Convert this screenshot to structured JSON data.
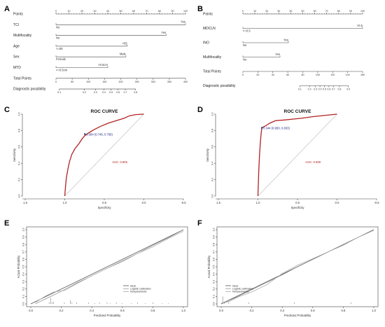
{
  "panel_labels": [
    "A",
    "B",
    "C",
    "D",
    "E",
    "F"
  ],
  "chart_data": [
    {
      "panel": "A",
      "type": "nomogram",
      "points_label": "Points",
      "points_ticks": [
        "0",
        "10",
        "20",
        "30",
        "40",
        "50",
        "60",
        "70",
        "80",
        "90",
        "100"
      ],
      "variables": [
        {
          "name": "TCI",
          "labels": [
            {
              "text": "No",
              "at": 0
            },
            {
              "text": "Yes",
              "at": 100
            }
          ]
        },
        {
          "name": "Multifocality",
          "labels": [
            {
              "text": "No",
              "at": 0
            },
            {
              "text": "Yes",
              "at": 85
            }
          ]
        },
        {
          "name": "Age",
          "labels": [
            {
              "text": ">=55",
              "at": 0
            },
            {
              "text": "<55",
              "at": 55
            }
          ]
        },
        {
          "name": "Sex",
          "labels": [
            {
              "text": "Female",
              "at": 0
            },
            {
              "text": "Male",
              "at": 54
            }
          ]
        },
        {
          "name": "MTD",
          "labels": [
            {
              "text": "<=0.5cm",
              "at": 0
            },
            {
              "text": ">0.5cm",
              "at": 40
            }
          ]
        }
      ],
      "total_label": "Total Points",
      "total_ticks": [
        "0",
        "50",
        "100",
        "150",
        "200",
        "250",
        "300",
        "350",
        "400"
      ],
      "total_range": [
        0,
        400
      ],
      "diag_label": "Diagnostic possibility",
      "diag_ticks": [
        {
          "v": "0.1",
          "at": 10
        },
        {
          "v": "0.2",
          "at": 88
        },
        {
          "v": "0.3",
          "at": 122
        },
        {
          "v": "0.4",
          "at": 148
        },
        {
          "v": "0.5",
          "at": 170
        },
        {
          "v": "0.6",
          "at": 192
        },
        {
          "v": "0.7",
          "at": 214
        },
        {
          "v": "0.8",
          "at": 246
        }
      ]
    },
    {
      "panel": "B",
      "type": "nomogram",
      "points_label": "Points",
      "points_ticks": [
        "0",
        "10",
        "20",
        "30",
        "40",
        "50",
        "60",
        "70",
        "80",
        "90",
        "100"
      ],
      "variables": [
        {
          "name": "MDCLN",
          "labels": [
            {
              "text": "<=0.5",
              "at": 0
            },
            {
              "text": ">0.5",
              "at": 100
            }
          ]
        },
        {
          "name": "INO",
          "labels": [
            {
              "text": "No",
              "at": 0
            },
            {
              "text": "Yes",
              "at": 38
            }
          ]
        },
        {
          "name": "Multifocality",
          "labels": [
            {
              "text": "No",
              "at": 0
            },
            {
              "text": "Yes",
              "at": 31
            }
          ]
        }
      ],
      "total_label": "Total Points",
      "total_ticks": [
        "0",
        "20",
        "40",
        "60",
        "80",
        "100",
        "120",
        "140",
        "160"
      ],
      "total_range": [
        0,
        160
      ],
      "diag_label": "Diagnostic possibility",
      "diag_ticks": [
        {
          "v": "0.1",
          "at": 76
        },
        {
          "v": "0.2",
          "at": 89
        },
        {
          "v": "0.3",
          "at": 97
        },
        {
          "v": "0.4",
          "at": 103
        },
        {
          "v": "0.5",
          "at": 109
        },
        {
          "v": "0.6",
          "at": 115
        },
        {
          "v": "0.7",
          "at": 121
        },
        {
          "v": "0.8",
          "at": 129
        },
        {
          "v": "0.9",
          "at": 141
        }
      ]
    },
    {
      "panel": "C",
      "type": "line",
      "title": "ROC CURVE",
      "xlabel": "Specificity",
      "ylabel": "Sensitivity",
      "xlim": [
        1.5,
        -0.5
      ],
      "ylim": [
        0,
        1
      ],
      "x_ticks": [
        "1.5",
        "1.0",
        "0.5",
        "0.0",
        "-0.5"
      ],
      "y_ticks": [
        "0.0",
        "0.2",
        "0.4",
        "0.6",
        "0.8",
        "1.0"
      ],
      "curve": [
        [
          1.0,
          0.0
        ],
        [
          0.99,
          0.12
        ],
        [
          0.98,
          0.22
        ],
        [
          0.96,
          0.33
        ],
        [
          0.94,
          0.42
        ],
        [
          0.91,
          0.51
        ],
        [
          0.87,
          0.58
        ],
        [
          0.82,
          0.64
        ],
        [
          0.78,
          0.7
        ],
        [
          0.75,
          0.734
        ],
        [
          0.7,
          0.77
        ],
        [
          0.63,
          0.81
        ],
        [
          0.55,
          0.85
        ],
        [
          0.45,
          0.89
        ],
        [
          0.35,
          0.92
        ],
        [
          0.25,
          0.95
        ],
        [
          0.18,
          0.98
        ],
        [
          0.1,
          0.995
        ],
        [
          0.0,
          1.0
        ]
      ],
      "threshold_point": {
        "x": 0.746,
        "y": 0.756,
        "label": "0.384 (0.746, 0.756)"
      },
      "auc_label": "AUC: 0.805"
    },
    {
      "panel": "D",
      "type": "line",
      "title": "ROC CURVE",
      "xlabel": "Specificity",
      "ylabel": "Sensitivity",
      "xlim": [
        1.5,
        -0.5
      ],
      "ylim": [
        0,
        1
      ],
      "x_ticks": [
        "1.5",
        "1.0",
        "0.5",
        "0.0",
        "-0.5"
      ],
      "y_ticks": [
        "0.0",
        "0.2",
        "0.4",
        "0.6",
        "0.8",
        "1.0"
      ],
      "curve": [
        [
          1.0,
          0.0
        ],
        [
          0.99,
          0.3
        ],
        [
          0.98,
          0.5
        ],
        [
          0.97,
          0.65
        ],
        [
          0.96,
          0.76
        ],
        [
          0.95,
          0.833
        ],
        [
          0.9,
          0.86
        ],
        [
          0.85,
          0.89
        ],
        [
          0.78,
          0.92
        ],
        [
          0.65,
          0.93
        ],
        [
          0.55,
          0.94
        ],
        [
          0.45,
          0.95
        ],
        [
          0.3,
          0.97
        ],
        [
          0.15,
          0.985
        ],
        [
          0.0,
          1.0
        ]
      ],
      "threshold_point": {
        "x": 0.95,
        "y": 0.833,
        "label": "0.344 (0.950, 0.833)"
      },
      "auc_label": "AUC: 0.938"
    },
    {
      "panel": "E",
      "type": "line",
      "xlabel": "Predicted Probability",
      "ylabel": "Actual Probability",
      "xlim": [
        0,
        1
      ],
      "ylim": [
        0,
        1
      ],
      "x_ticks": [
        "0.0",
        "0.2",
        "0.4",
        "0.6",
        "0.8",
        "1.0"
      ],
      "y_ticks": [
        "0.0",
        "0.1",
        "0.2",
        "0.3",
        "0.4",
        "0.5",
        "0.6",
        "0.7",
        "0.8",
        "0.9",
        "1.0"
      ],
      "legend": [
        "Ideal",
        "Logistic calibration",
        "Nonparametric"
      ],
      "legend_position": "lower-center",
      "series": [
        {
          "name": "Ideal",
          "points": [
            [
              0,
              0
            ],
            [
              1,
              1
            ]
          ]
        },
        {
          "name": "Logistic calibration",
          "points": [
            [
              0.03,
              0.0
            ],
            [
              0.1,
              0.07
            ],
            [
              0.2,
              0.17
            ],
            [
              0.3,
              0.28
            ],
            [
              0.4,
              0.38
            ],
            [
              0.5,
              0.48
            ],
            [
              0.6,
              0.58
            ],
            [
              0.7,
              0.68
            ],
            [
              0.8,
              0.79
            ],
            [
              0.9,
              0.89
            ],
            [
              1.0,
              1.0
            ]
          ]
        },
        {
          "name": "Nonparametric",
          "points": [
            [
              0.03,
              0.02
            ],
            [
              0.1,
              0.11
            ],
            [
              0.15,
              0.16
            ],
            [
              0.22,
              0.18
            ],
            [
              0.3,
              0.27
            ],
            [
              0.4,
              0.38
            ],
            [
              0.5,
              0.48
            ],
            [
              0.6,
              0.57
            ],
            [
              0.7,
              0.68
            ],
            [
              0.8,
              0.77
            ],
            [
              0.9,
              0.88
            ],
            [
              1.0,
              0.98
            ]
          ]
        }
      ],
      "rug": [
        0.12,
        0.13,
        0.14,
        0.15,
        0.22,
        0.26,
        0.27,
        0.3,
        0.38,
        0.42,
        0.45,
        0.5,
        0.52,
        0.56,
        0.6,
        0.66,
        0.7,
        0.75,
        0.8,
        0.86,
        0.9
      ],
      "rug_heights": [
        0.02,
        0.08,
        0.02,
        0.03,
        0.02,
        0.05,
        0.02,
        0.02,
        0.02,
        0.01,
        0.02,
        0.02,
        0.01,
        0.02,
        0.01,
        0.01,
        0.02,
        0.01,
        0.02,
        0.01,
        0.01
      ]
    },
    {
      "panel": "F",
      "type": "line",
      "xlabel": "Predicted Probability",
      "ylabel": "Actual Probability",
      "xlim": [
        0,
        1
      ],
      "ylim": [
        0,
        1
      ],
      "x_ticks": [
        "0.0",
        "0.2",
        "0.4",
        "0.6",
        "0.8",
        "1.0"
      ],
      "y_ticks": [
        "0.0",
        "0.1",
        "0.2",
        "0.3",
        "0.4",
        "0.5",
        "0.6",
        "0.7",
        "0.8",
        "0.9",
        "1.0"
      ],
      "legend": [
        "Ideal",
        "Logistic calibration",
        "Nonparametric"
      ],
      "legend_position": "lower-left",
      "series": [
        {
          "name": "Ideal",
          "points": [
            [
              0,
              0
            ],
            [
              1,
              1
            ]
          ]
        },
        {
          "name": "Logistic calibration",
          "points": [
            [
              0.0,
              0.0
            ],
            [
              0.1,
              0.09
            ],
            [
              0.2,
              0.19
            ],
            [
              0.3,
              0.29
            ],
            [
              0.4,
              0.39
            ],
            [
              0.5,
              0.5
            ],
            [
              0.6,
              0.6
            ],
            [
              0.7,
              0.7
            ],
            [
              0.8,
              0.8
            ],
            [
              0.9,
              0.9
            ],
            [
              1.0,
              1.0
            ]
          ]
        },
        {
          "name": "Nonparametric",
          "points": [
            [
              0.0,
              0.01
            ],
            [
              0.05,
              0.03
            ],
            [
              0.12,
              0.1
            ],
            [
              0.2,
              0.16
            ],
            [
              0.3,
              0.26
            ],
            [
              0.4,
              0.41
            ],
            [
              0.5,
              0.52
            ],
            [
              0.6,
              0.61
            ],
            [
              0.7,
              0.7
            ],
            [
              0.8,
              0.79
            ],
            [
              0.9,
              0.9
            ],
            [
              1.0,
              0.99
            ]
          ]
        }
      ],
      "rug": [
        0.01,
        0.02,
        0.05,
        0.18,
        0.48,
        0.85
      ],
      "rug_heights": [
        0.1,
        0.03,
        0.02,
        0.02,
        0.02,
        0.02
      ]
    }
  ]
}
